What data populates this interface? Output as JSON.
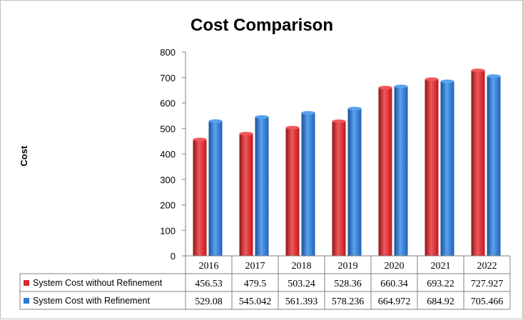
{
  "chart_data": {
    "type": "bar",
    "title": "Cost Comparison",
    "ylabel": "Cost",
    "xlabel": "",
    "ylim": [
      0,
      800
    ],
    "yticks": [
      0,
      100,
      200,
      300,
      400,
      500,
      600,
      700,
      800
    ],
    "categories": [
      "2016",
      "2017",
      "2018",
      "2019",
      "2020",
      "2021",
      "2022"
    ],
    "series": [
      {
        "name": "System Cost without Refinement",
        "color": "#d9252a",
        "labels": [
          "456.53",
          "479.5",
          "503.24",
          "528.36",
          "660.34",
          "693.22",
          "727.927"
        ],
        "values": [
          456.53,
          479.5,
          503.24,
          528.36,
          660.34,
          693.22,
          727.927
        ]
      },
      {
        "name": "System Cost with Refinement",
        "color": "#2b79d4",
        "labels": [
          "529.08",
          "545.042",
          "561.393",
          "578.236",
          "664.972",
          "684.92",
          "705.466"
        ],
        "values": [
          529.08,
          545.042,
          561.393,
          578.236,
          664.972,
          684.92,
          705.466
        ]
      }
    ],
    "grid": false,
    "legend": "data-table"
  }
}
